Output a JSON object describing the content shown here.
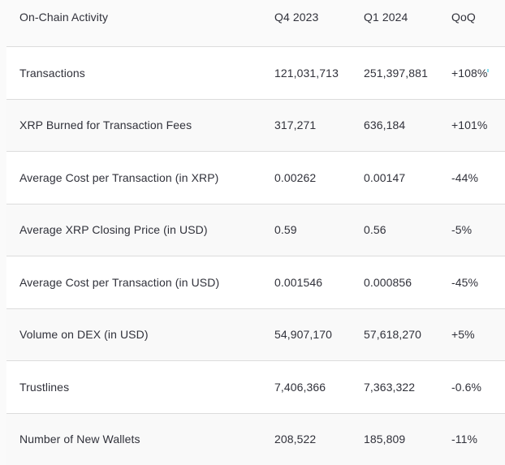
{
  "chart_data": {
    "type": "table",
    "title": "On-Chain Activity",
    "columns": [
      "On-Chain Activity",
      "Q4 2023",
      "Q1 2024",
      "QoQ"
    ],
    "rows": [
      [
        "Transactions",
        "121,031,713",
        "251,397,881",
        "+108%"
      ],
      [
        "XRP Burned for Transaction Fees",
        "317,271",
        "636,184",
        "+101%"
      ],
      [
        "Average Cost per Transaction (in XRP)",
        "0.00262",
        "0.00147",
        "-44%"
      ],
      [
        "Average XRP Closing Price (in USD)",
        "0.59",
        "0.56",
        "-5%"
      ],
      [
        "Average Cost per Transaction (in USD)",
        "0.001546",
        "0.000856",
        "-45%"
      ],
      [
        "Volume on DEX (in USD)",
        "54,907,170",
        "57,618,270",
        "+5%"
      ],
      [
        "Trustlines",
        "7,406,366",
        "7,363,322",
        "-0.6%"
      ],
      [
        "Number of New Wallets",
        "208,522",
        "185,809",
        "-11%"
      ]
    ],
    "layout": {
      "striped": true,
      "header_position": "top",
      "column_alignment": "left",
      "grid": "horizontal-dividers-only"
    }
  },
  "colors": {
    "page_background": "#fafafa",
    "row_white": "#ffffff",
    "row_gray": "#f9f9f9",
    "divider": "#dcdcdc",
    "text": "#30313a",
    "artifact_dot": "#8adeee"
  }
}
